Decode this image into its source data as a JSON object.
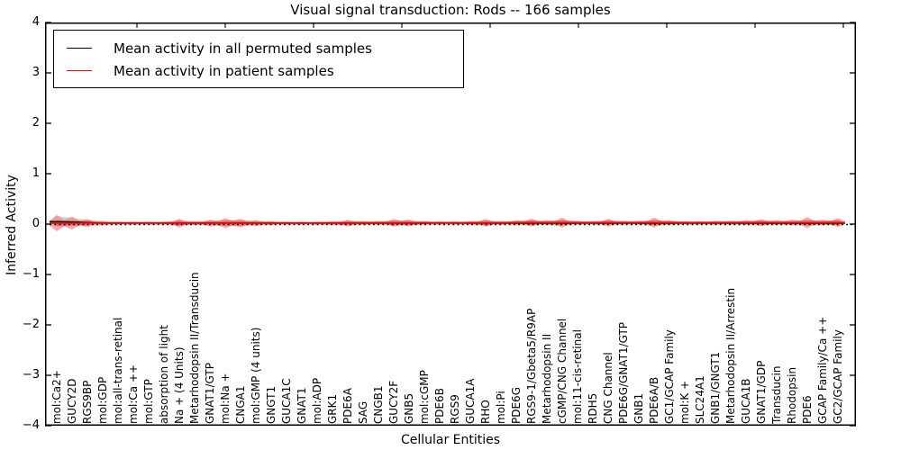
{
  "title": "Visual signal transduction: Rods -- 166 samples",
  "legend": {
    "entries": [
      {
        "label": "Mean activity in all permuted samples",
        "color": "#000000"
      },
      {
        "label": "Mean activity in patient samples",
        "color": "#ff0000"
      }
    ]
  },
  "chart_data": {
    "type": "area",
    "subtype": "violin-band-with-mean-lines",
    "title": "Visual signal transduction: Rods -- 166 samples",
    "xlabel": "Cellular Entities",
    "ylabel": "Inferred Activity",
    "ylim": [
      -4,
      4
    ],
    "ytick_labels": [
      "4",
      "3",
      "2",
      "1",
      "0",
      "−1",
      "−2",
      "−3",
      "−4"
    ],
    "ytick_values": [
      4,
      3,
      2,
      1,
      0,
      -1,
      -2,
      -3,
      -4
    ],
    "grid": false,
    "legend_position": "upper left",
    "zero_line": {
      "y": 0,
      "style": "dotted",
      "color": "#000000"
    },
    "categories": [
      "mol:Ca2+",
      "GUCY2D",
      "RGS9BP",
      "mol:GDP",
      "mol:all-trans-retinal",
      "mol:Ca ++",
      "mol:GTP",
      "absorption of light",
      "Na + (4 Units)",
      "Metarhodopsin II/Transducin",
      "GNAT1/GTP",
      "mol:Na +",
      "CNGA1",
      "mol:GMP (4 units)",
      "GNGT1",
      "GUCA1C",
      "GNAT1",
      "mol:ADP",
      "GRK1",
      "PDE6A",
      "SAG",
      "CNGB1",
      "GUCY2F",
      "GNB5",
      "mol:cGMP",
      "PDE6B",
      "RGS9",
      "GUCA1A",
      "RHO",
      "mol:Pi",
      "PDE6G",
      "RGS9-1/Gbeta5/R9AP",
      "Metarhodopsin II",
      "cGMP/CNG Channel",
      "mol:11-cis-retinal",
      "RDH5",
      "CNG Channel",
      "PDE6G/GNAT1/GTP",
      "GNB1",
      "PDE6A/B",
      "GC1/GCAP Family",
      "mol:K +",
      "SLC24A1",
      "GNB1/GNGT1",
      "Metarhodopsin II/Arrestin",
      "GUCA1B",
      "GNAT1/GDP",
      "Transducin",
      "Rhodopsin",
      "PDE6",
      "GCAP Family/Ca ++",
      "GC2/GCAP Family"
    ],
    "series": [
      {
        "name": "Mean activity in all permuted samples",
        "color": "#000000",
        "values": [
          0.05,
          0.04,
          0.03,
          0.02,
          0.02,
          0.02,
          0.02,
          0.02,
          0.02,
          0.02,
          0.02,
          0.02,
          0.02,
          0.02,
          0.02,
          0.02,
          0.02,
          0.02,
          0.02,
          0.02,
          0.02,
          0.02,
          0.02,
          0.02,
          0.02,
          0.02,
          0.02,
          0.02,
          0.02,
          0.02,
          0.02,
          0.02,
          0.02,
          0.02,
          0.02,
          0.02,
          0.02,
          0.02,
          0.02,
          0.02,
          0.02,
          0.02,
          0.02,
          0.02,
          0.02,
          0.02,
          0.02,
          0.02,
          0.02,
          0.02,
          0.02,
          0.02
        ]
      },
      {
        "name": "Mean activity in patient samples",
        "color": "#ff0000",
        "values": [
          0.02,
          0.02,
          0.02,
          0.02,
          0.02,
          0.02,
          0.02,
          0.02,
          0.02,
          0.02,
          0.02,
          0.02,
          0.02,
          0.02,
          0.02,
          0.02,
          0.02,
          0.02,
          0.02,
          0.02,
          0.025,
          0.025,
          0.025,
          0.025,
          0.025,
          0.025,
          0.025,
          0.025,
          0.025,
          0.025,
          0.03,
          0.03,
          0.03,
          0.03,
          0.03,
          0.03,
          0.03,
          0.03,
          0.03,
          0.03,
          0.03,
          0.03,
          0.03,
          0.03,
          0.03,
          0.03,
          0.03,
          0.03,
          0.03,
          0.03,
          0.03,
          0.03
        ]
      }
    ],
    "patient_violin_halfheights": [
      0.16,
      0.13,
      0.08,
      0.04,
      0.03,
      0.03,
      0.03,
      0.03,
      0.09,
      0.04,
      0.07,
      0.1,
      0.09,
      0.06,
      0.04,
      0.03,
      0.03,
      0.03,
      0.04,
      0.07,
      0.04,
      0.04,
      0.08,
      0.07,
      0.04,
      0.03,
      0.03,
      0.04,
      0.08,
      0.04,
      0.05,
      0.08,
      0.05,
      0.1,
      0.04,
      0.03,
      0.08,
      0.04,
      0.04,
      0.1,
      0.05,
      0.03,
      0.03,
      0.04,
      0.04,
      0.05,
      0.07,
      0.05,
      0.06,
      0.11,
      0.06,
      0.09
    ],
    "permuted_band_halfheights": [
      0.11,
      0.08,
      0.06,
      0.05,
      0.04,
      0.04,
      0.04,
      0.04,
      0.05,
      0.04,
      0.05,
      0.06,
      0.05,
      0.05,
      0.04,
      0.04,
      0.04,
      0.04,
      0.04,
      0.05,
      0.04,
      0.04,
      0.05,
      0.05,
      0.04,
      0.04,
      0.04,
      0.04,
      0.05,
      0.04,
      0.04,
      0.05,
      0.04,
      0.06,
      0.04,
      0.04,
      0.05,
      0.04,
      0.04,
      0.06,
      0.04,
      0.04,
      0.04,
      0.04,
      0.04,
      0.04,
      0.05,
      0.04,
      0.04,
      0.06,
      0.04,
      0.05
    ],
    "colors": {
      "patient_line": "#ff0000",
      "patient_fill": "#f08080",
      "patient_fill_inner": "#e83c3c",
      "permuted_line": "#000000",
      "permuted_fill": "#b0b0b0",
      "axis": "#000000"
    }
  }
}
